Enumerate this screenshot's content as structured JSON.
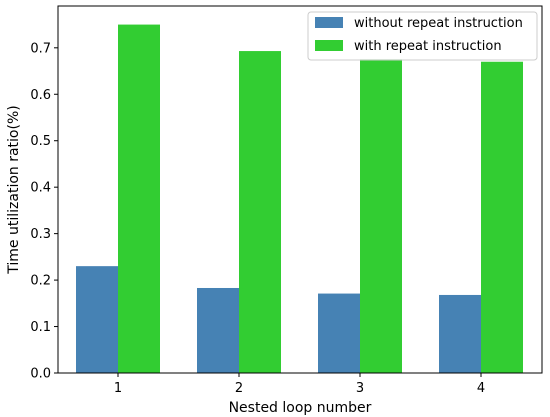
{
  "chart_data": {
    "type": "bar",
    "categories": [
      "1",
      "2",
      "3",
      "4"
    ],
    "series": [
      {
        "name": "without repeat instruction",
        "values": [
          0.23,
          0.183,
          0.171,
          0.168
        ],
        "color": "#4682b4"
      },
      {
        "name": "with repeat instruction",
        "values": [
          0.75,
          0.693,
          0.676,
          0.67
        ],
        "color": "#32cd32"
      }
    ],
    "xlabel": "Nested loop number",
    "ylabel": "Time utilization ratio(%)",
    "ylim": [
      0,
      0.79
    ],
    "yticks": [
      "0.0",
      "0.1",
      "0.2",
      "0.3",
      "0.4",
      "0.5",
      "0.6",
      "0.7"
    ],
    "grid": false,
    "legend_position": "top-right"
  }
}
